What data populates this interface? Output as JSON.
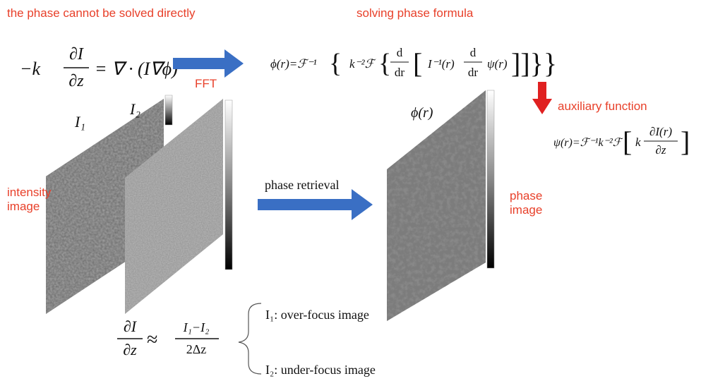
{
  "labels": {
    "cannot_solve": "the phase cannot be solved directly",
    "solving_formula": "solving phase formula",
    "fft": "FFT",
    "auxiliary": "auxiliary function",
    "phase_retrieval": "phase retrieval",
    "intensity_image": [
      "intensity",
      "image"
    ],
    "phase_image": [
      "phase",
      "image"
    ]
  },
  "images": {
    "i1": "I₁",
    "i2": "I₂",
    "phase": "ϕ(r)"
  },
  "equations": {
    "tie": {
      "lead": "−k",
      "numerator": "∂I",
      "denominator": "∂z",
      "rest": "= ∇ · (I∇ϕ)"
    },
    "phase": {
      "lead": "ϕ(r)=ℱ⁻¹",
      "open1": "{",
      "k": "k⁻²ℱ",
      "open2": "{",
      "d1_num": "d",
      "d1_den": "dr",
      "open3": "[",
      "inv": "I⁻¹(r)",
      "d2_num": "d",
      "d2_den": "dr",
      "psi": "ψ(r)",
      "close": "]]}}"
    },
    "auxiliary": {
      "lead": "ψ(r)=ℱ⁻¹k⁻²ℱ",
      "open": "[",
      "k": "k",
      "numerator": "∂I(r)",
      "denominator": "∂z",
      "close": "]"
    },
    "derivative": {
      "numerator": "∂I",
      "denominator": "∂z",
      "approx": "≈",
      "diff_numerator": "I₁−I₂",
      "diff_denominator": "2Δz"
    }
  },
  "legend": {
    "over": "I₁: over-focus image",
    "under": "I₂: under-focus image"
  }
}
